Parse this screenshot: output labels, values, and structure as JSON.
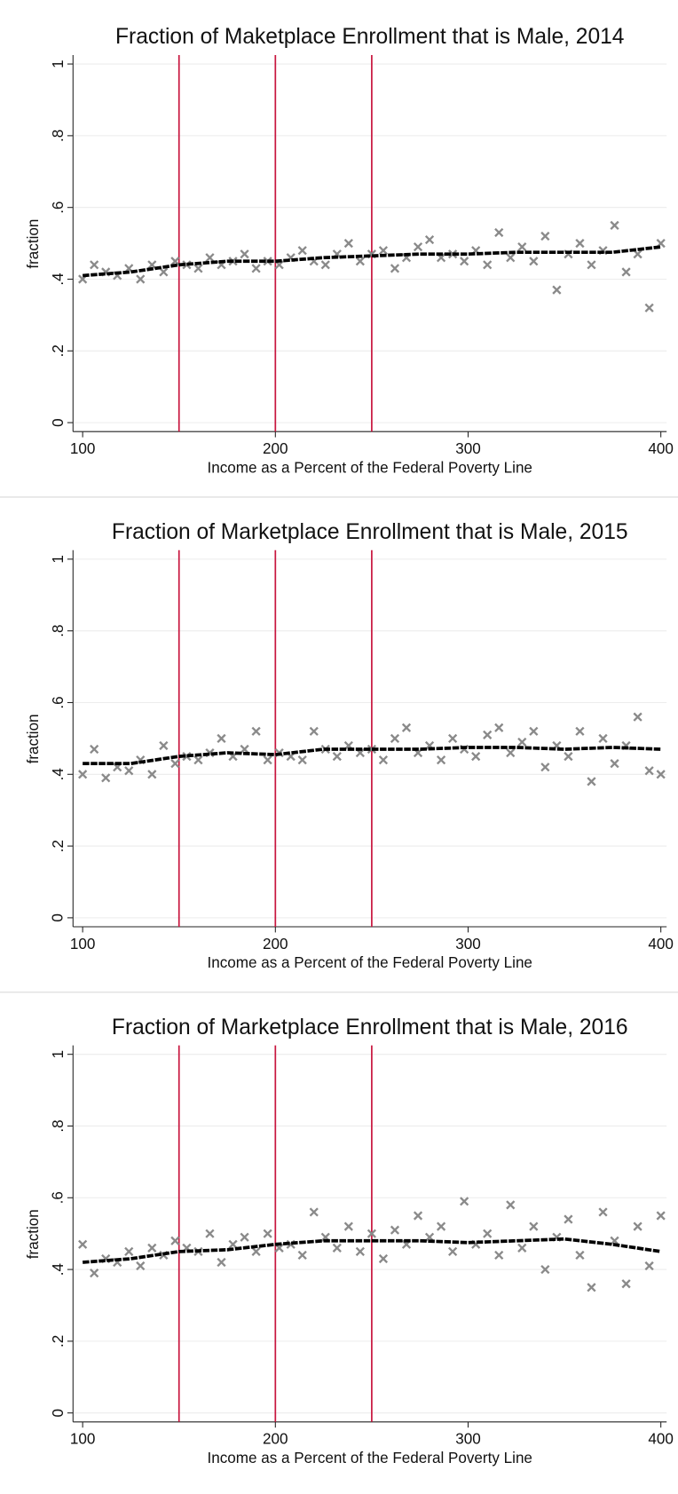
{
  "chart_data": [
    {
      "type": "scatter",
      "title": "Fraction of Maketplace Enrollment that is Male, 2014",
      "x_label": "Income as a Percent of the Federal Poverty Line",
      "y_label": "fraction",
      "x": [
        100,
        106,
        112,
        118,
        124,
        130,
        136,
        142,
        148,
        154,
        160,
        166,
        172,
        178,
        184,
        190,
        196,
        202,
        208,
        214,
        220,
        226,
        232,
        238,
        244,
        250,
        256,
        262,
        268,
        274,
        280,
        286,
        292,
        298,
        304,
        310,
        316,
        322,
        328,
        334,
        340,
        346,
        352,
        358,
        364,
        370,
        376,
        382,
        388,
        394,
        400
      ],
      "values": [
        0.4,
        0.44,
        0.42,
        0.41,
        0.43,
        0.4,
        0.44,
        0.42,
        0.45,
        0.44,
        0.43,
        0.46,
        0.44,
        0.45,
        0.47,
        0.43,
        0.45,
        0.44,
        0.46,
        0.48,
        0.45,
        0.44,
        0.47,
        0.5,
        0.45,
        0.47,
        0.48,
        0.43,
        0.46,
        0.49,
        0.51,
        0.46,
        0.47,
        0.45,
        0.48,
        0.44,
        0.53,
        0.46,
        0.49,
        0.45,
        0.52,
        0.37,
        0.47,
        0.5,
        0.44,
        0.48,
        0.55,
        0.42,
        0.47,
        0.32,
        0.5
      ],
      "color": "#8a8a8a",
      "fit": {
        "x": [
          100,
          125,
          150,
          175,
          200,
          225,
          250,
          275,
          300,
          325,
          350,
          375,
          400
        ],
        "values": [
          0.41,
          0.42,
          0.44,
          0.45,
          0.45,
          0.46,
          0.465,
          0.47,
          0.47,
          0.475,
          0.475,
          0.475,
          0.49
        ],
        "color": "#000000"
      },
      "vlines": [
        150,
        200,
        250
      ],
      "vline_color": "#c8163f",
      "xlim": [
        95,
        403
      ],
      "xticks": [
        100,
        200,
        300,
        400
      ],
      "ylim": [
        -0.025,
        1.025
      ],
      "yticks": [
        0,
        {
          "value": 0.2,
          "label": ".2"
        },
        {
          "value": 0.4,
          "label": ".4"
        },
        {
          "value": 0.6,
          "label": ".6"
        },
        {
          "value": 0.8,
          "label": ".8"
        },
        1
      ],
      "grid": true
    },
    {
      "type": "scatter",
      "title": "Fraction of Marketplace Enrollment that is Male, 2015",
      "x_label": "Income as a Percent of the Federal Poverty Line",
      "y_label": "fraction",
      "x": [
        100,
        106,
        112,
        118,
        124,
        130,
        136,
        142,
        148,
        154,
        160,
        166,
        172,
        178,
        184,
        190,
        196,
        202,
        208,
        214,
        220,
        226,
        232,
        238,
        244,
        250,
        256,
        262,
        268,
        274,
        280,
        286,
        292,
        298,
        304,
        310,
        316,
        322,
        328,
        334,
        340,
        346,
        352,
        358,
        364,
        370,
        376,
        382,
        388,
        394,
        400
      ],
      "values": [
        0.4,
        0.47,
        0.39,
        0.42,
        0.41,
        0.44,
        0.4,
        0.48,
        0.43,
        0.45,
        0.44,
        0.46,
        0.5,
        0.45,
        0.47,
        0.52,
        0.44,
        0.46,
        0.45,
        0.44,
        0.52,
        0.47,
        0.45,
        0.48,
        0.46,
        0.47,
        0.44,
        0.5,
        0.53,
        0.46,
        0.48,
        0.44,
        0.5,
        0.47,
        0.45,
        0.51,
        0.53,
        0.46,
        0.49,
        0.52,
        0.42,
        0.48,
        0.45,
        0.52,
        0.38,
        0.5,
        0.43,
        0.48,
        0.56,
        0.41,
        0.4
      ],
      "color": "#8a8a8a",
      "fit": {
        "x": [
          100,
          125,
          150,
          175,
          200,
          225,
          250,
          275,
          300,
          325,
          350,
          375,
          400
        ],
        "values": [
          0.43,
          0.43,
          0.45,
          0.46,
          0.455,
          0.47,
          0.47,
          0.47,
          0.475,
          0.475,
          0.47,
          0.475,
          0.47
        ],
        "color": "#000000"
      },
      "vlines": [
        150,
        200,
        250
      ],
      "vline_color": "#c8163f",
      "xlim": [
        95,
        403
      ],
      "xticks": [
        100,
        200,
        300,
        400
      ],
      "ylim": [
        -0.025,
        1.025
      ],
      "yticks": [
        0,
        {
          "value": 0.2,
          "label": ".2"
        },
        {
          "value": 0.4,
          "label": ".4"
        },
        {
          "value": 0.6,
          "label": ".6"
        },
        {
          "value": 0.8,
          "label": ".8"
        },
        1
      ],
      "grid": true
    },
    {
      "type": "scatter",
      "title": "Fraction of Marketplace Enrollment that is Male, 2016",
      "x_label": "Income as a Percent of the Federal Poverty Line",
      "y_label": "fraction",
      "x": [
        100,
        106,
        112,
        118,
        124,
        130,
        136,
        142,
        148,
        154,
        160,
        166,
        172,
        178,
        184,
        190,
        196,
        202,
        208,
        214,
        220,
        226,
        232,
        238,
        244,
        250,
        256,
        262,
        268,
        274,
        280,
        286,
        292,
        298,
        304,
        310,
        316,
        322,
        328,
        334,
        340,
        346,
        352,
        358,
        364,
        370,
        376,
        382,
        388,
        394,
        400
      ],
      "values": [
        0.47,
        0.39,
        0.43,
        0.42,
        0.45,
        0.41,
        0.46,
        0.44,
        0.48,
        0.46,
        0.45,
        0.5,
        0.42,
        0.47,
        0.49,
        0.45,
        0.5,
        0.46,
        0.47,
        0.44,
        0.56,
        0.49,
        0.46,
        0.52,
        0.45,
        0.5,
        0.43,
        0.51,
        0.47,
        0.55,
        0.49,
        0.52,
        0.45,
        0.59,
        0.47,
        0.5,
        0.44,
        0.58,
        0.46,
        0.52,
        0.4,
        0.49,
        0.54,
        0.44,
        0.35,
        0.56,
        0.48,
        0.36,
        0.52,
        0.41,
        0.55
      ],
      "color": "#8a8a8a",
      "fit": {
        "x": [
          100,
          125,
          150,
          175,
          200,
          225,
          250,
          275,
          300,
          325,
          350,
          375,
          400
        ],
        "values": [
          0.42,
          0.43,
          0.45,
          0.455,
          0.47,
          0.48,
          0.48,
          0.48,
          0.475,
          0.48,
          0.485,
          0.47,
          0.45
        ],
        "color": "#000000"
      },
      "vlines": [
        150,
        200,
        250
      ],
      "vline_color": "#c8163f",
      "xlim": [
        95,
        403
      ],
      "xticks": [
        100,
        200,
        300,
        400
      ],
      "ylim": [
        -0.025,
        1.025
      ],
      "yticks": [
        0,
        {
          "value": 0.2,
          "label": ".2"
        },
        {
          "value": 0.4,
          "label": ".4"
        },
        {
          "value": 0.6,
          "label": ".6"
        },
        {
          "value": 0.8,
          "label": ".8"
        },
        1
      ],
      "grid": true
    }
  ]
}
